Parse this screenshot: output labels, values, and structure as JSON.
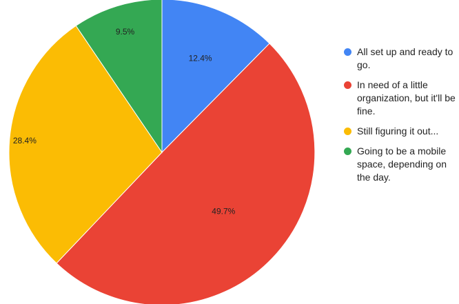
{
  "chart_data": {
    "type": "pie",
    "title": "",
    "start_angle_deg": 0,
    "direction": "clockwise",
    "legend_position": "right",
    "slices": [
      {
        "label": "All set up and ready to go.",
        "value": 12.4,
        "display": "12.4%",
        "color": "#4285F4"
      },
      {
        "label": "In need of a little organization, but it'll be fine.",
        "value": 49.7,
        "display": "49.7%",
        "color": "#EA4335"
      },
      {
        "label": "Still figuring it out...",
        "value": 28.4,
        "display": "28.4%",
        "color": "#FBBC04"
      },
      {
        "label": "Going to be a mobile space, depending on the day.",
        "value": 9.5,
        "display": "9.5%",
        "color": "#34A853"
      }
    ]
  }
}
